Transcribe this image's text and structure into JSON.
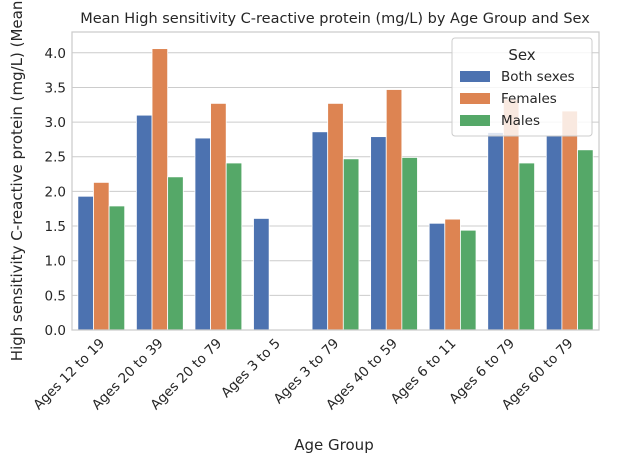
{
  "chart_data": {
    "type": "bar",
    "title": "Mean High sensitivity C-reactive protein (mg/L) by Age Group and Sex",
    "xlabel": "Age Group",
    "ylabel": "High sensitivity C-reactive protein (mg/L) (Mean)",
    "ylim": [
      0,
      4.3
    ],
    "yticks": [
      "0.0",
      "0.5",
      "1.0",
      "1.5",
      "2.0",
      "2.5",
      "3.0",
      "3.5",
      "4.0"
    ],
    "grid": true,
    "legend": {
      "title": "Sex",
      "placement": "top-right"
    },
    "categories": [
      "Ages 12 to 19",
      "Ages 20 to 39",
      "Ages 20 to 79",
      "Ages 3 to 5",
      "Ages 3 to 79",
      "Ages 40 to 59",
      "Ages 6 to 11",
      "Ages 6 to 79",
      "Ages 60 to 79"
    ],
    "series": [
      {
        "name": "Both sexes",
        "color": "#4c72b0",
        "values": [
          1.93,
          3.1,
          2.77,
          1.61,
          2.86,
          2.79,
          1.54,
          2.85,
          2.8
        ]
      },
      {
        "name": "Females",
        "color": "#dd8452",
        "values": [
          2.13,
          4.06,
          3.27,
          null,
          3.27,
          3.47,
          1.6,
          3.33,
          3.16
        ]
      },
      {
        "name": "Males",
        "color": "#55a868",
        "values": [
          1.79,
          2.21,
          2.41,
          null,
          2.47,
          2.49,
          1.44,
          2.41,
          2.6
        ]
      }
    ]
  }
}
